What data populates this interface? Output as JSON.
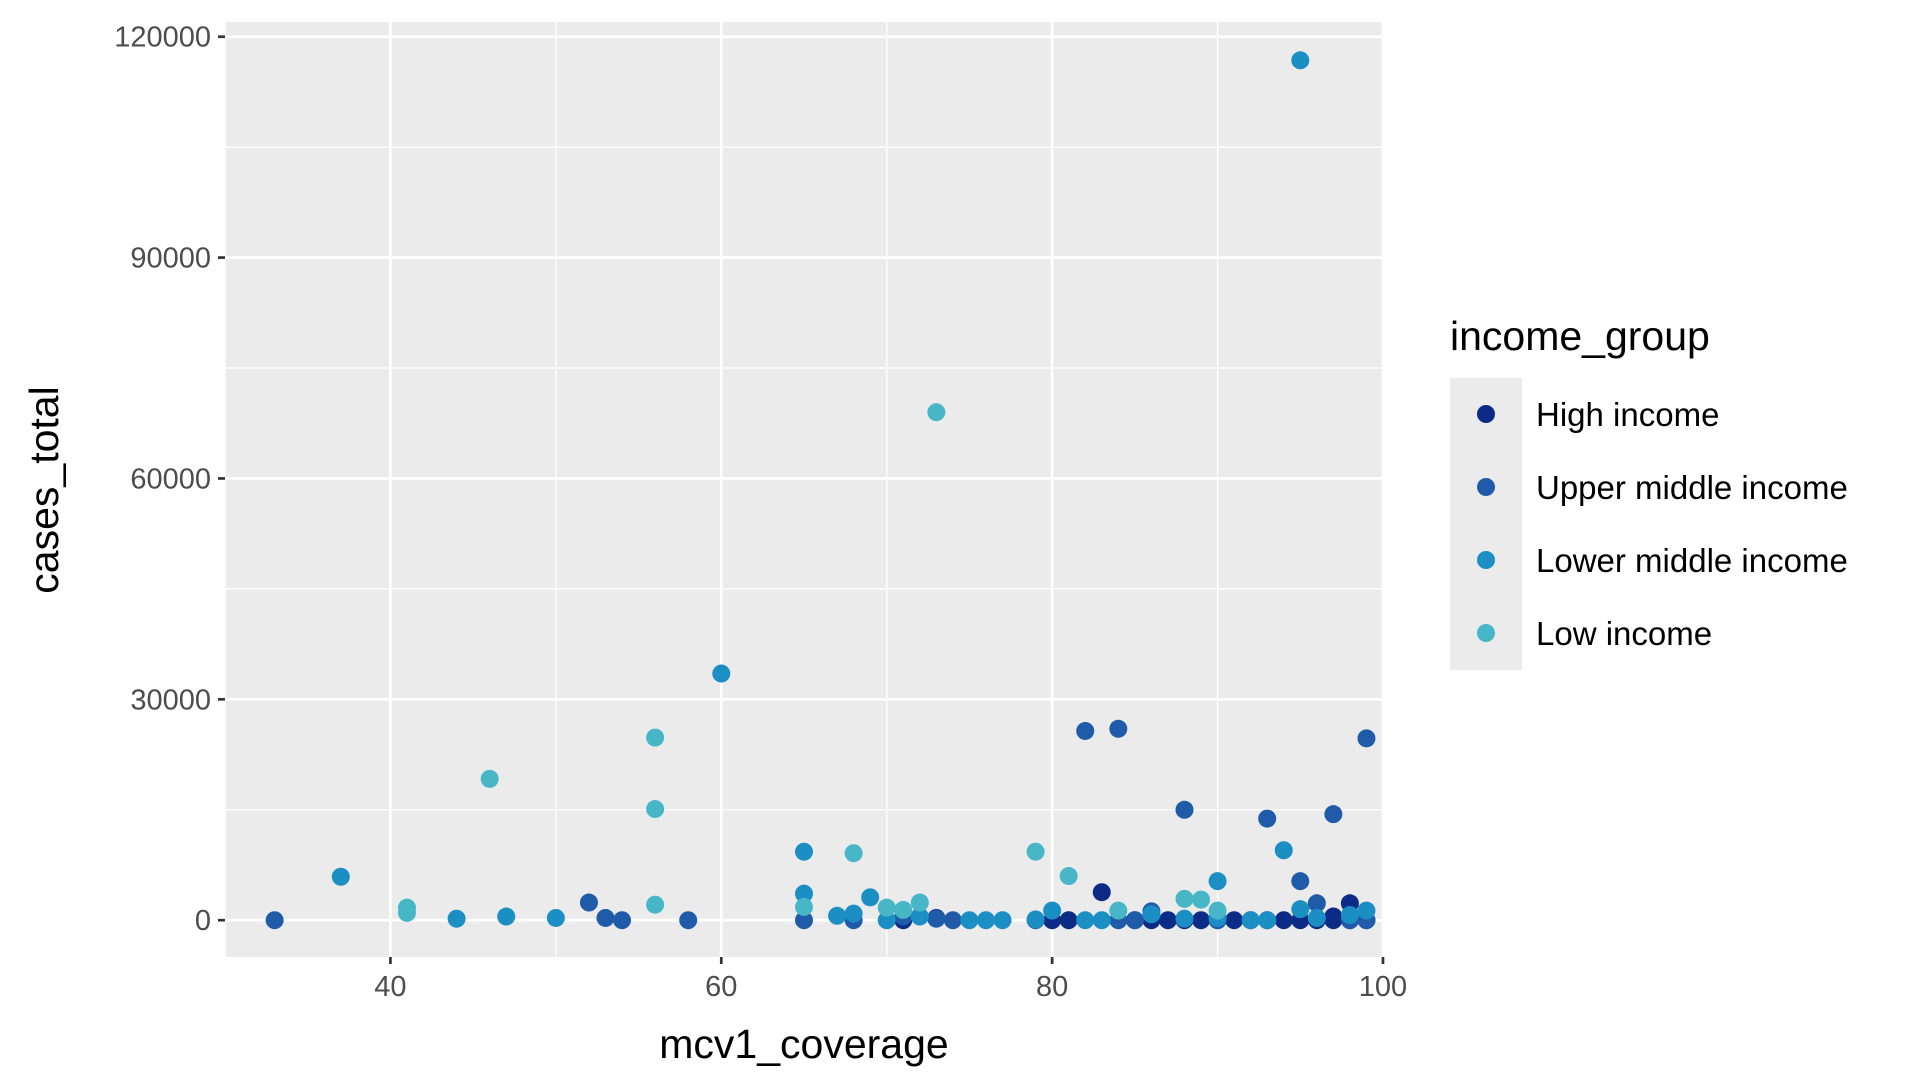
{
  "chart_data": {
    "type": "scatter",
    "xlabel": "mcv1_coverage",
    "ylabel": "cases_total",
    "xlim": [
      30,
      100
    ],
    "ylim": [
      -5000,
      122000
    ],
    "x_ticks": [
      40,
      60,
      80,
      100
    ],
    "y_ticks": [
      0,
      30000,
      60000,
      90000,
      120000
    ],
    "grid": true,
    "legend_position": "right",
    "legend_title": "income_group",
    "series": [
      {
        "name": "High income",
        "color": "#0b2b86",
        "points": [
          [
            71,
            0
          ],
          [
            73,
            300
          ],
          [
            80,
            0
          ],
          [
            81,
            0
          ],
          [
            83,
            3800
          ],
          [
            85,
            0
          ],
          [
            86,
            0
          ],
          [
            87,
            0
          ],
          [
            88,
            0
          ],
          [
            89,
            0
          ],
          [
            90,
            0
          ],
          [
            91,
            0
          ],
          [
            92,
            0
          ],
          [
            93,
            0
          ],
          [
            94,
            0
          ],
          [
            95,
            0
          ],
          [
            96,
            0
          ],
          [
            97,
            0
          ],
          [
            97,
            500
          ],
          [
            98,
            2300
          ],
          [
            98,
            0
          ],
          [
            99,
            0
          ]
        ]
      },
      {
        "name": "Upper middle income",
        "color": "#1f5ba9",
        "points": [
          [
            33,
            0
          ],
          [
            52,
            2400
          ],
          [
            53,
            300
          ],
          [
            54,
            0
          ],
          [
            58,
            0
          ],
          [
            65,
            0
          ],
          [
            68,
            0
          ],
          [
            71,
            500
          ],
          [
            73,
            200
          ],
          [
            74,
            0
          ],
          [
            79,
            0
          ],
          [
            82,
            25700
          ],
          [
            84,
            26000
          ],
          [
            84,
            0
          ],
          [
            85,
            0
          ],
          [
            86,
            1200
          ],
          [
            88,
            15000
          ],
          [
            90,
            0
          ],
          [
            93,
            13800
          ],
          [
            95,
            5300
          ],
          [
            96,
            2300
          ],
          [
            97,
            14400
          ],
          [
            98,
            0
          ],
          [
            99,
            24700
          ],
          [
            99,
            0
          ]
        ]
      },
      {
        "name": "Lower middle income",
        "color": "#1b8fc4",
        "points": [
          [
            37,
            5900
          ],
          [
            44,
            200
          ],
          [
            47,
            500
          ],
          [
            50,
            300
          ],
          [
            60,
            33500
          ],
          [
            65,
            9300
          ],
          [
            65,
            3600
          ],
          [
            67,
            600
          ],
          [
            68,
            900
          ],
          [
            69,
            3100
          ],
          [
            70,
            0
          ],
          [
            72,
            500
          ],
          [
            75,
            0
          ],
          [
            76,
            0
          ],
          [
            77,
            0
          ],
          [
            79,
            100
          ],
          [
            80,
            1300
          ],
          [
            82,
            0
          ],
          [
            83,
            0
          ],
          [
            86,
            800
          ],
          [
            88,
            200
          ],
          [
            90,
            5300
          ],
          [
            90,
            300
          ],
          [
            92,
            0
          ],
          [
            93,
            0
          ],
          [
            94,
            9500
          ],
          [
            95,
            116800
          ],
          [
            95,
            1500
          ],
          [
            96,
            300
          ],
          [
            98,
            700
          ],
          [
            99,
            1300
          ]
        ]
      },
      {
        "name": "Low income",
        "color": "#47b7c8",
        "points": [
          [
            41,
            1700
          ],
          [
            41,
            1000
          ],
          [
            46,
            19200
          ],
          [
            56,
            24800
          ],
          [
            56,
            15100
          ],
          [
            56,
            2100
          ],
          [
            65,
            1800
          ],
          [
            68,
            9100
          ],
          [
            70,
            1700
          ],
          [
            71,
            1400
          ],
          [
            72,
            2400
          ],
          [
            73,
            69000
          ],
          [
            79,
            9300
          ],
          [
            81,
            6000
          ],
          [
            84,
            1300
          ],
          [
            88,
            2900
          ],
          [
            89,
            2800
          ],
          [
            90,
            1300
          ]
        ]
      }
    ]
  }
}
